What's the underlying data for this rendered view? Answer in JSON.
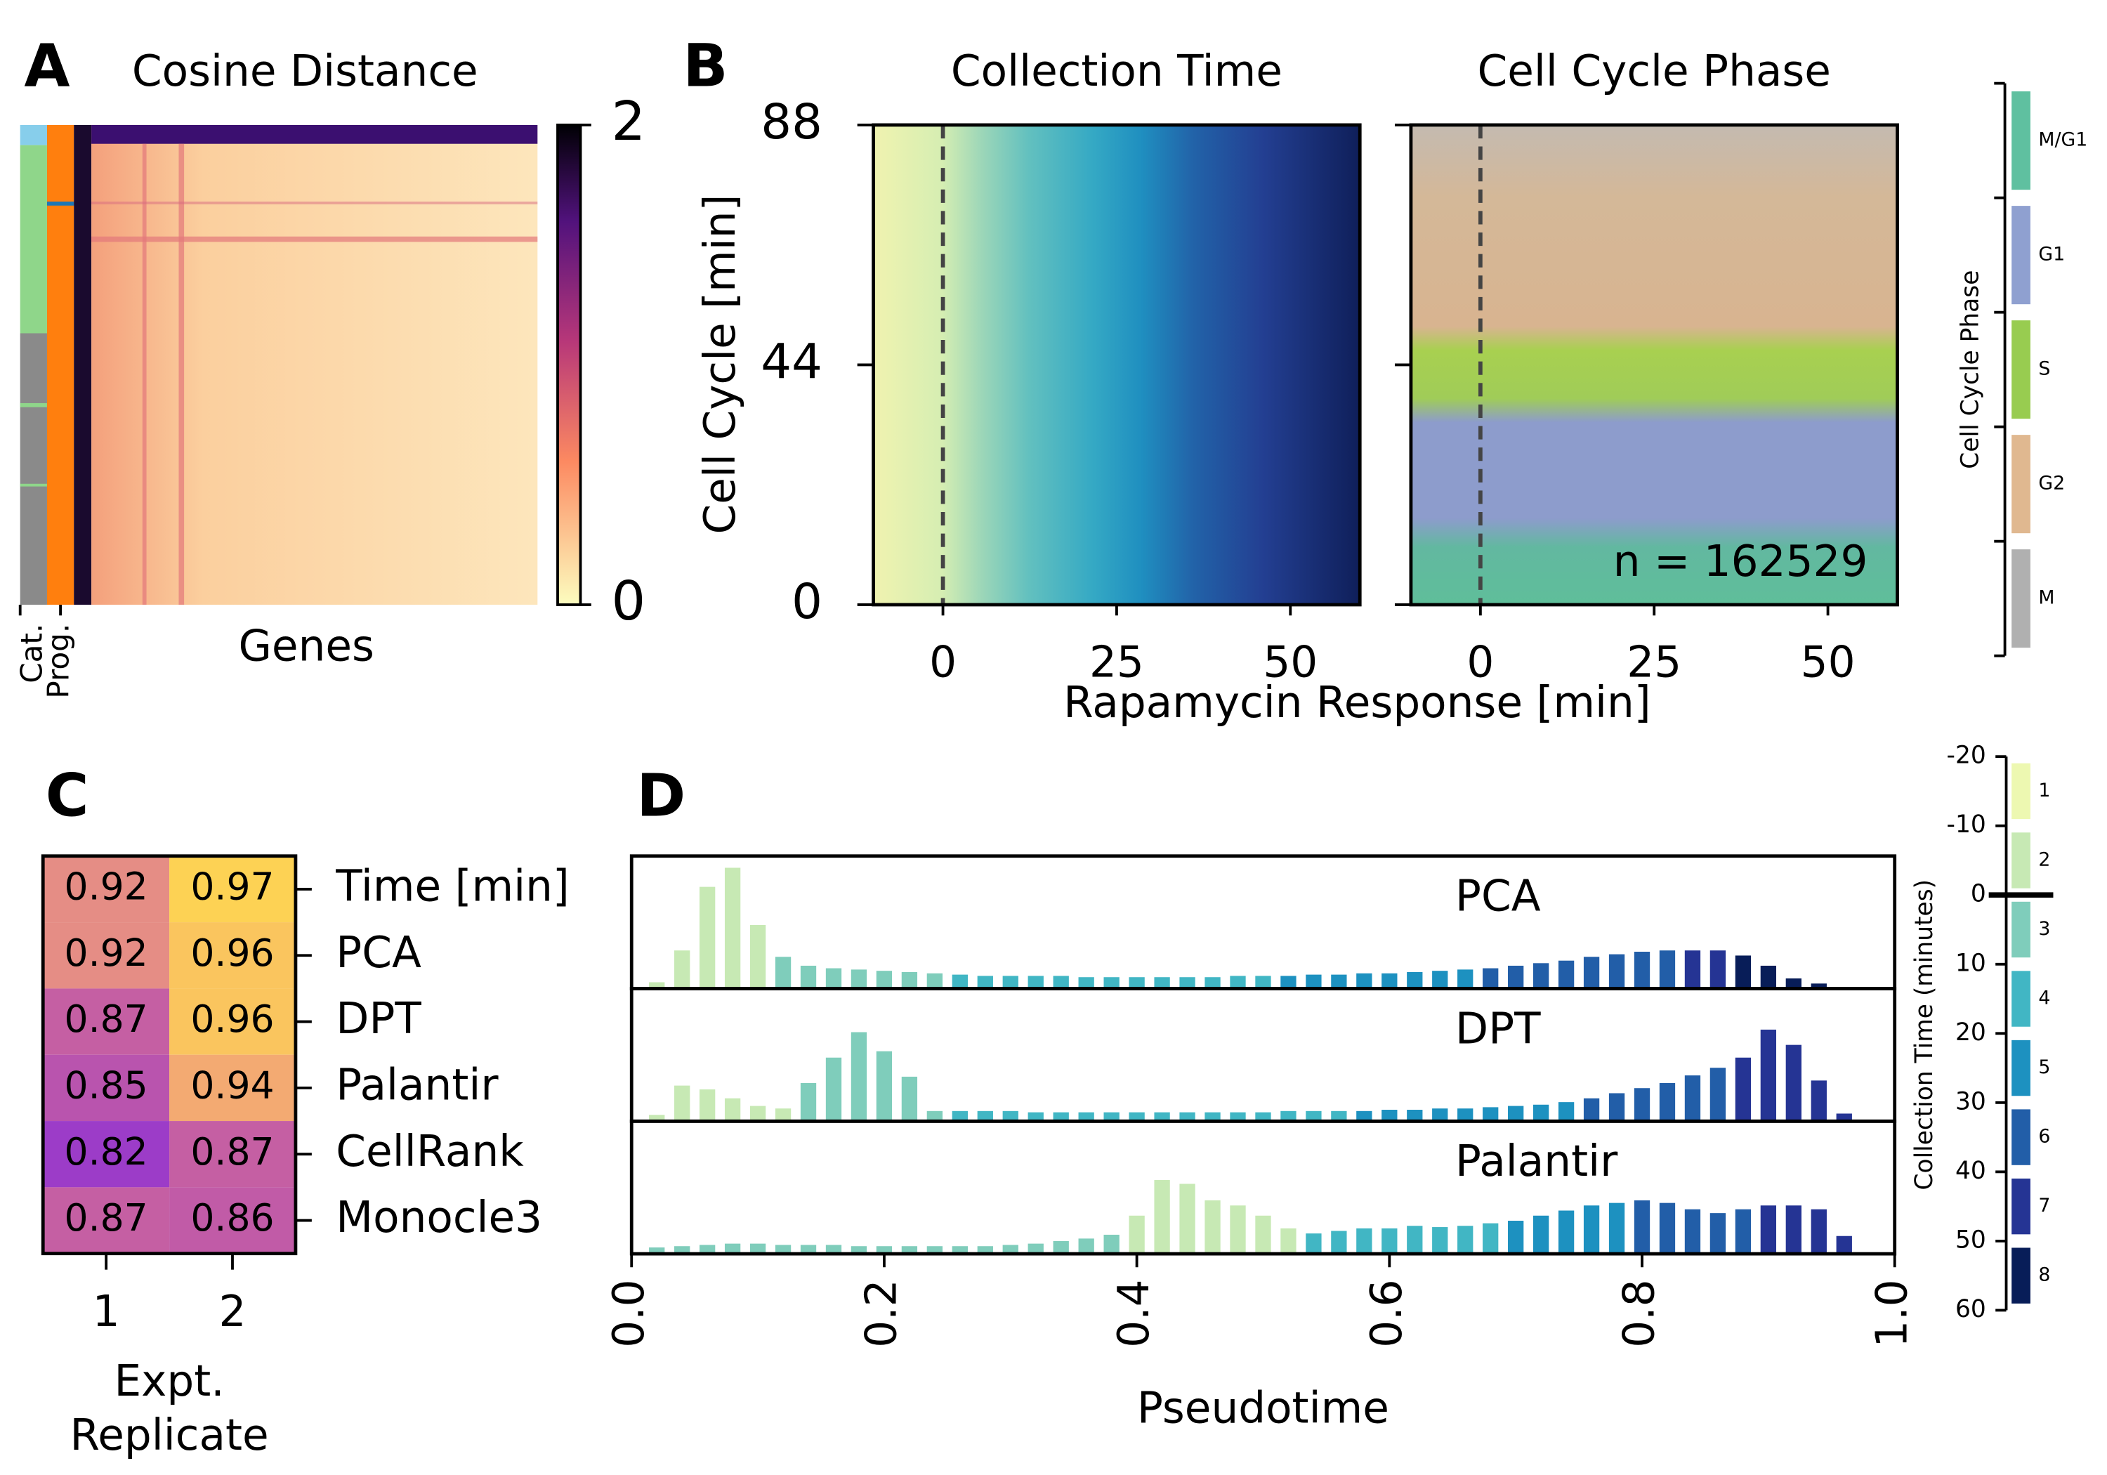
{
  "chart_data": [
    {
      "type": "matrix",
      "panel": "A",
      "title": "Cosine Distance",
      "xlabel": "Genes",
      "strip_labels": [
        "Cat.",
        "Prog."
      ],
      "clim": [
        0,
        2
      ],
      "cticks": [
        0,
        2
      ]
    },
    {
      "type": "scatter",
      "panel": "B",
      "title": "Collection Time",
      "ylabel": "Cell Cycle [min]",
      "xlabel": "Rapamycin Response [min]",
      "xlim": [
        -10,
        60
      ],
      "ylim": [
        0,
        88
      ],
      "xticks": [
        0,
        25,
        50
      ],
      "yticks": [
        0,
        44,
        88
      ],
      "vline": 0
    },
    {
      "type": "scatter",
      "title": "Cell Cycle Phase",
      "annotation": "n = 162529",
      "xlim": [
        -10,
        60
      ],
      "ylim": [
        0,
        88
      ],
      "xticks": [
        0,
        25,
        50
      ],
      "yticks": [
        0,
        44,
        88
      ],
      "vline": 0,
      "legend": {
        "title": "Cell Cycle Phase",
        "categories": [
          "M/G1",
          "G1",
          "S",
          "G2",
          "M"
        ],
        "colors": [
          "#5fc0a0",
          "#8fa0d0",
          "#98cc50",
          "#e0b890",
          "#b0b0b0"
        ]
      }
    },
    {
      "type": "heatmap",
      "panel": "C",
      "rows": [
        "Time [min]",
        "PCA",
        "DPT",
        "Palantir",
        "CellRank",
        "Monocle3"
      ],
      "columns": [
        "1",
        "2"
      ],
      "xlabel": [
        "Expt.",
        "Replicate"
      ],
      "values": [
        [
          0.92,
          0.97
        ],
        [
          0.92,
          0.96
        ],
        [
          0.87,
          0.96
        ],
        [
          0.85,
          0.94
        ],
        [
          0.82,
          0.87
        ],
        [
          0.87,
          0.86
        ]
      ],
      "colors": [
        "#9c3cc8",
        "#c05aa8",
        "#d0689a",
        "#f0a07a",
        "#fdd254"
      ]
    },
    {
      "type": "histogram",
      "panel": "D",
      "xlabel": "Pseudotime",
      "xlim": [
        0,
        1
      ],
      "xticks": [
        {
          "value": 0,
          "label": "0.0"
        },
        0.2,
        0.4,
        0.6,
        0.8,
        {
          "value": 1,
          "label": "1.0"
        }
      ],
      "bins": [
        0.01,
        0.03,
        0.05,
        0.07,
        0.09,
        0.11,
        0.13,
        0.15,
        0.17,
        0.19,
        0.21,
        0.23,
        0.25,
        0.27,
        0.29,
        0.31,
        0.33,
        0.35,
        0.37,
        0.39,
        0.41,
        0.43,
        0.45,
        0.47,
        0.49,
        0.51,
        0.53,
        0.55,
        0.57,
        0.59,
        0.61,
        0.63,
        0.65,
        0.67,
        0.69,
        0.71,
        0.73,
        0.75,
        0.77,
        0.79,
        0.81,
        0.83,
        0.85,
        0.87,
        0.89,
        0.91,
        0.93,
        0.95,
        0.97
      ],
      "panels": [
        {
          "name": "PCA",
          "counts": [
            0.05,
            0.3,
            0.8,
            0.95,
            0.5,
            0.25,
            0.18,
            0.16,
            0.15,
            0.14,
            0.13,
            0.12,
            0.11,
            0.1,
            0.1,
            0.1,
            0.1,
            0.09,
            0.09,
            0.09,
            0.09,
            0.09,
            0.09,
            0.1,
            0.1,
            0.1,
            0.11,
            0.11,
            0.12,
            0.12,
            0.13,
            0.14,
            0.15,
            0.16,
            0.18,
            0.2,
            0.22,
            0.25,
            0.27,
            0.29,
            0.3,
            0.3,
            0.3,
            0.26,
            0.18,
            0.08,
            0.04,
            0.01
          ],
          "colors": [
            "#c7e9b4",
            "#c7e9b4",
            "#c7e9b4",
            "#c7e9b4",
            "#c7e9b4",
            "#7fcdbb",
            "#7fcdbb",
            "#7fcdbb",
            "#7fcdbb",
            "#7fcdbb",
            "#7fcdbb",
            "#7fcdbb",
            "#41b6c4",
            "#41b6c4",
            "#41b6c4",
            "#41b6c4",
            "#41b6c4",
            "#41b6c4",
            "#41b6c4",
            "#41b6c4",
            "#41b6c4",
            "#41b6c4",
            "#41b6c4",
            "#41b6c4",
            "#41b6c4",
            "#1d91c0",
            "#1d91c0",
            "#1d91c0",
            "#1d91c0",
            "#1d91c0",
            "#1d91c0",
            "#1d91c0",
            "#1d91c0",
            "#225ea8",
            "#225ea8",
            "#225ea8",
            "#225ea8",
            "#225ea8",
            "#225ea8",
            "#225ea8",
            "#225ea8",
            "#253494",
            "#253494",
            "#081d58",
            "#081d58",
            "#081d58",
            "#081d58",
            "#081d58"
          ]
        },
        {
          "name": "DPT",
          "counts": [
            0.05,
            0.28,
            0.25,
            0.18,
            0.12,
            0.1,
            0.3,
            0.5,
            0.7,
            0.55,
            0.35,
            0.08,
            0.08,
            0.08,
            0.08,
            0.07,
            0.07,
            0.07,
            0.07,
            0.07,
            0.07,
            0.07,
            0.07,
            0.07,
            0.07,
            0.08,
            0.08,
            0.08,
            0.08,
            0.09,
            0.09,
            0.1,
            0.1,
            0.11,
            0.12,
            0.13,
            0.15,
            0.18,
            0.22,
            0.26,
            0.3,
            0.36,
            0.42,
            0.5,
            0.72,
            0.6,
            0.32,
            0.06
          ],
          "colors": [
            "#c7e9b4",
            "#c7e9b4",
            "#c7e9b4",
            "#c7e9b4",
            "#c7e9b4",
            "#c7e9b4",
            "#7fcdbb",
            "#7fcdbb",
            "#7fcdbb",
            "#7fcdbb",
            "#7fcdbb",
            "#7fcdbb",
            "#41b6c4",
            "#41b6c4",
            "#41b6c4",
            "#41b6c4",
            "#41b6c4",
            "#41b6c4",
            "#41b6c4",
            "#41b6c4",
            "#41b6c4",
            "#41b6c4",
            "#41b6c4",
            "#41b6c4",
            "#41b6c4",
            "#41b6c4",
            "#41b6c4",
            "#41b6c4",
            "#1d91c0",
            "#1d91c0",
            "#1d91c0",
            "#1d91c0",
            "#1d91c0",
            "#1d91c0",
            "#1d91c0",
            "#1d91c0",
            "#1d91c0",
            "#225ea8",
            "#225ea8",
            "#225ea8",
            "#225ea8",
            "#225ea8",
            "#225ea8",
            "#253494",
            "#253494",
            "#253494",
            "#253494",
            "#253494"
          ]
        },
        {
          "name": "Palantir",
          "counts": [
            0.05,
            0.06,
            0.07,
            0.08,
            0.08,
            0.07,
            0.07,
            0.07,
            0.06,
            0.06,
            0.06,
            0.06,
            0.06,
            0.06,
            0.07,
            0.08,
            0.1,
            0.12,
            0.15,
            0.3,
            0.58,
            0.55,
            0.42,
            0.38,
            0.3,
            0.2,
            0.16,
            0.18,
            0.2,
            0.2,
            0.22,
            0.21,
            0.22,
            0.24,
            0.26,
            0.3,
            0.34,
            0.38,
            0.4,
            0.42,
            0.4,
            0.35,
            0.32,
            0.35,
            0.38,
            0.38,
            0.35,
            0.14
          ],
          "colors": [
            "#7fcdbb",
            "#7fcdbb",
            "#7fcdbb",
            "#7fcdbb",
            "#7fcdbb",
            "#7fcdbb",
            "#7fcdbb",
            "#7fcdbb",
            "#7fcdbb",
            "#7fcdbb",
            "#7fcdbb",
            "#7fcdbb",
            "#7fcdbb",
            "#7fcdbb",
            "#7fcdbb",
            "#7fcdbb",
            "#7fcdbb",
            "#7fcdbb",
            "#7fcdbb",
            "#c7e9b4",
            "#c7e9b4",
            "#c7e9b4",
            "#c7e9b4",
            "#c7e9b4",
            "#c7e9b4",
            "#c7e9b4",
            "#41b6c4",
            "#41b6c4",
            "#41b6c4",
            "#41b6c4",
            "#41b6c4",
            "#41b6c4",
            "#41b6c4",
            "#41b6c4",
            "#1d91c0",
            "#1d91c0",
            "#1d91c0",
            "#1d91c0",
            "#1d91c0",
            "#225ea8",
            "#225ea8",
            "#225ea8",
            "#225ea8",
            "#225ea8",
            "#253494",
            "#253494",
            "#253494",
            "#253494"
          ]
        }
      ],
      "legend": {
        "title": "Collection Time (minutes)",
        "ylim": [
          -20,
          60
        ],
        "yticks": [
          -20,
          -10,
          0,
          10,
          20,
          30,
          40,
          50,
          60
        ],
        "categories": [
          "1",
          "2",
          "3",
          "4",
          "5",
          "6",
          "7",
          "8"
        ],
        "colors": [
          "#edf8b1",
          "#c7e9b4",
          "#7fcdbb",
          "#41b6c4",
          "#1d91c0",
          "#225ea8",
          "#253494",
          "#081d58"
        ]
      }
    }
  ]
}
